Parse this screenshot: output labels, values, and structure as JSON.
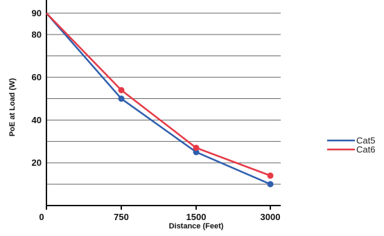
{
  "chart_data": {
    "type": "line",
    "xlabel": "Distance (Feet)",
    "ylabel": "PoE at Load (W)",
    "categories": [
      "0",
      "750",
      "1500",
      "3000"
    ],
    "y_ticks": [
      "20",
      "40",
      "60",
      "80",
      "90"
    ],
    "ylim": [
      0,
      90
    ],
    "grid": true,
    "legend_position": "right",
    "series": [
      {
        "name": "Cat5",
        "color": "#2f5fae",
        "values": [
          90,
          50,
          25,
          10
        ]
      },
      {
        "name": "Cat6",
        "color": "#e63946",
        "values": [
          90,
          54,
          27,
          14
        ]
      }
    ]
  }
}
